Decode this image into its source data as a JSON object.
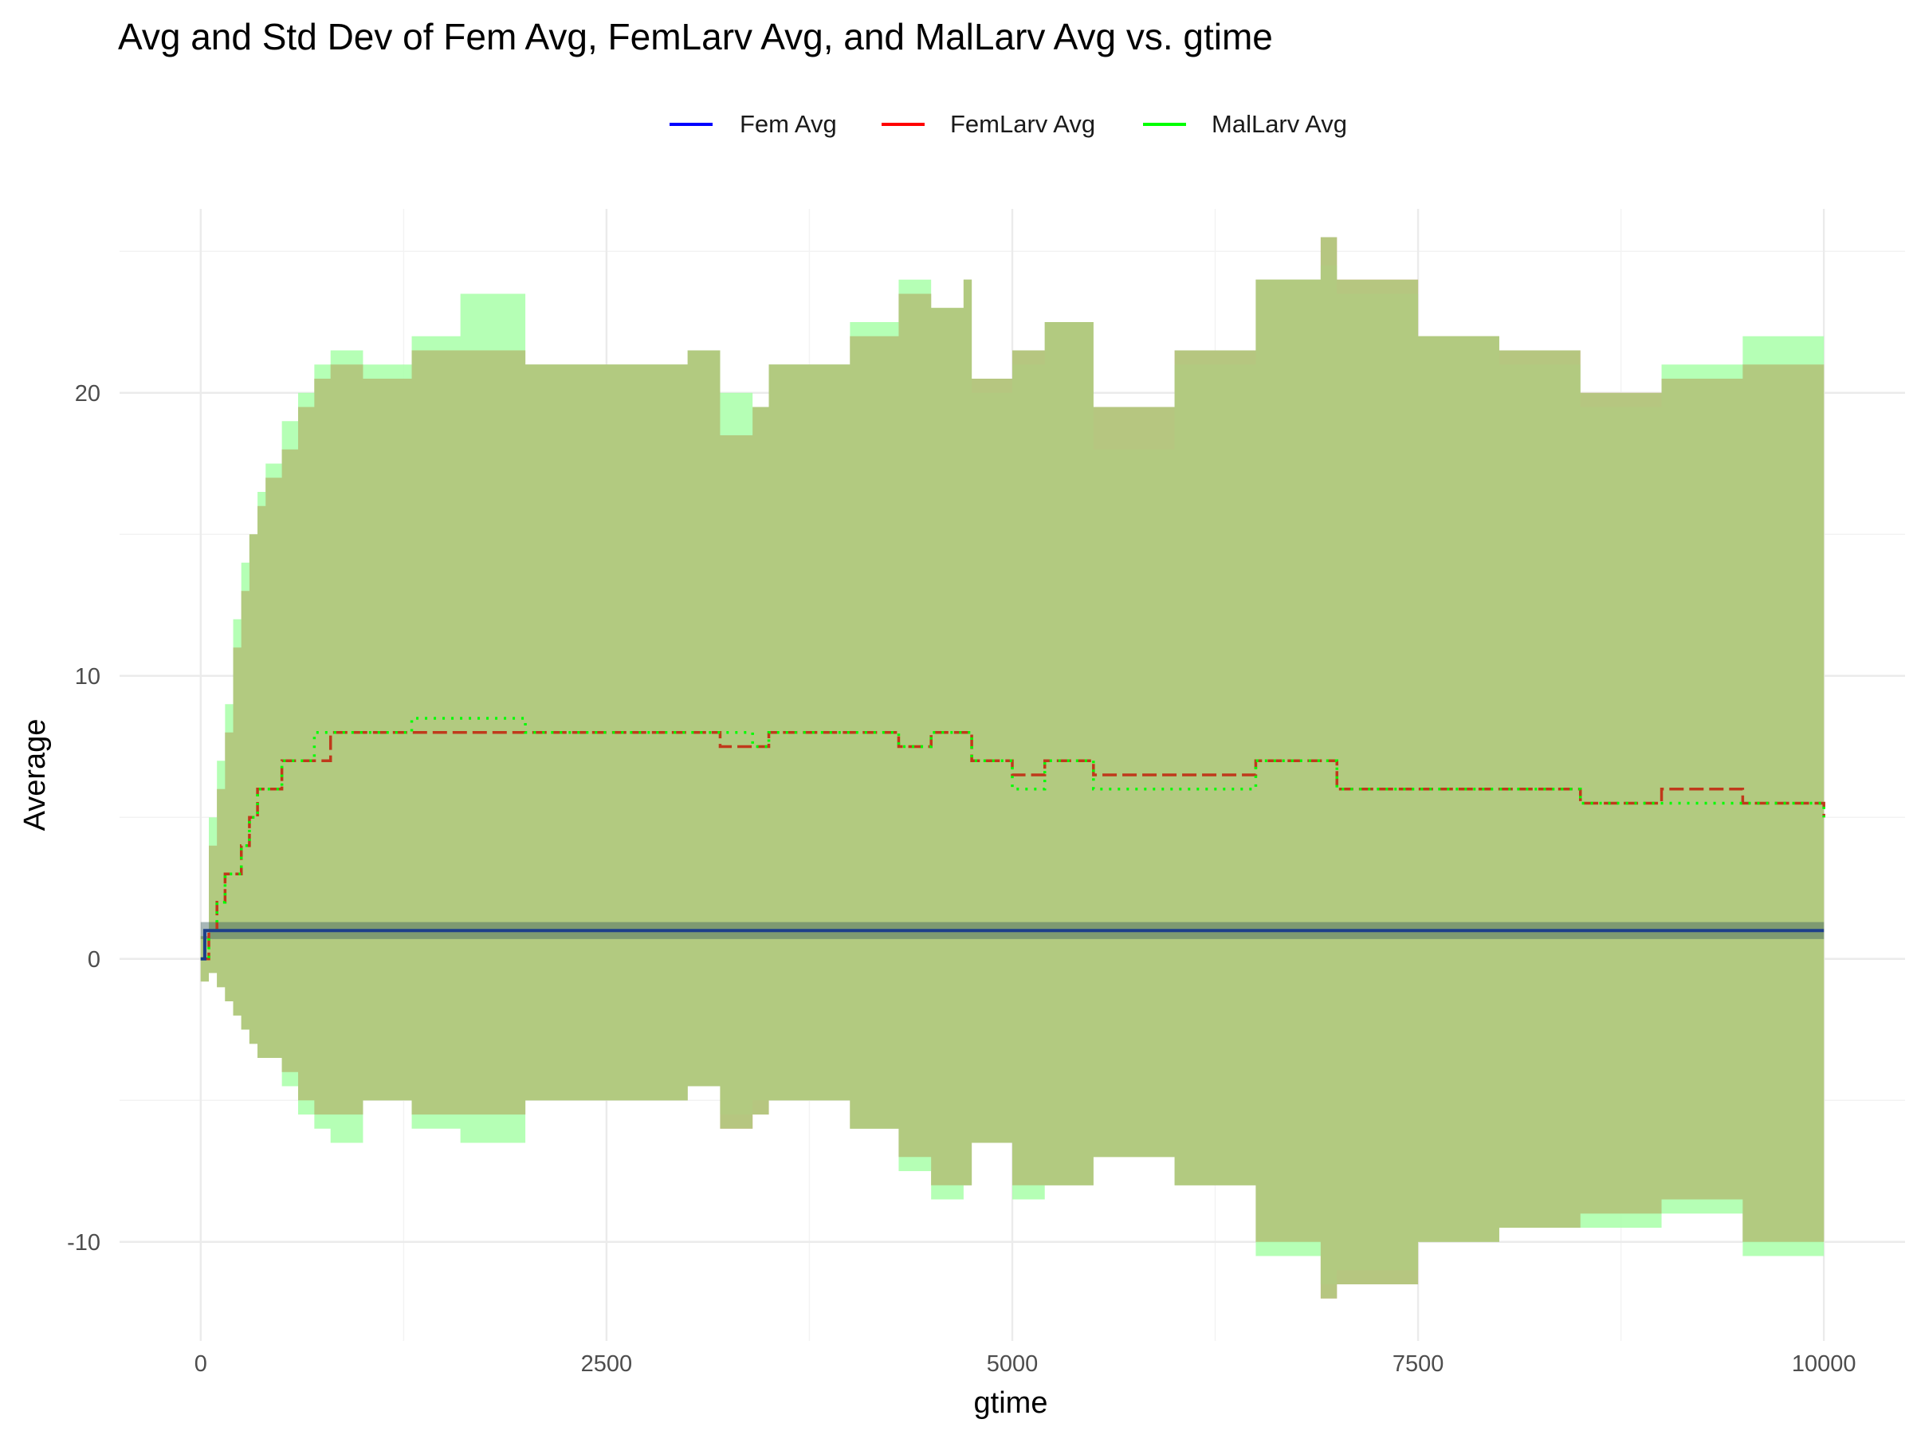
{
  "chart_data": {
    "type": "line",
    "title": "Avg and Std Dev of Fem Avg, FemLarv Avg, and MalLarv Avg vs. gtime",
    "xlabel": "gtime",
    "ylabel": "Average",
    "xlim": [
      -500,
      10500
    ],
    "ylim": [
      -13.5,
      26.5
    ],
    "x_ticks": [
      0,
      2500,
      5000,
      7500,
      10000
    ],
    "x_tick_labels": [
      "0",
      "2500",
      "5000",
      "7500",
      "10000"
    ],
    "y_ticks": [
      -10,
      0,
      10,
      20
    ],
    "y_tick_labels": [
      "-10",
      "0",
      "10",
      "20"
    ],
    "grid": true,
    "legend_position": "top",
    "legend": [
      "Fem Avg",
      "FemLarv Avg",
      "MalLarv Avg"
    ],
    "series": [
      {
        "name": "Fem Avg",
        "color": "#0000ff",
        "line_style": "solid",
        "x": [
          0,
          25,
          50,
          10000
        ],
        "values": [
          0,
          1,
          1,
          1
        ],
        "sd_upper": [
          1.3,
          1.3,
          1.3,
          1.3
        ],
        "sd_lower": [
          0.7,
          0.7,
          0.7,
          0.7
        ],
        "band_color": "#3d6060"
      },
      {
        "name": "FemLarv Avg",
        "color": "#ff0000",
        "line_style": "dashed",
        "x": [
          0,
          50,
          100,
          150,
          200,
          250,
          300,
          350,
          400,
          500,
          600,
          700,
          800,
          1000,
          1300,
          1600,
          2000,
          2500,
          3000,
          3200,
          3400,
          3500,
          4000,
          4300,
          4500,
          4700,
          4750,
          5000,
          5200,
          5500,
          6000,
          6500,
          6900,
          7000,
          7500,
          8000,
          8500,
          9000,
          9500,
          10000
        ],
        "values": [
          0,
          1,
          2,
          3,
          3,
          4,
          5,
          6,
          6,
          7,
          7,
          7,
          8,
          8,
          8,
          8,
          8,
          8,
          8,
          7.5,
          7.5,
          8,
          8,
          7.5,
          8,
          8,
          7,
          6.5,
          7,
          6.5,
          6.5,
          7,
          7,
          6,
          6,
          6,
          5.5,
          6,
          5.5,
          5
        ],
        "sd_upper": [
          0.8,
          4,
          6,
          8,
          11,
          13,
          15,
          16,
          17,
          18,
          19.5,
          20.5,
          21,
          20.5,
          21.5,
          21.5,
          21,
          21,
          21.5,
          18.5,
          19.5,
          21,
          22,
          23.5,
          23,
          24,
          20.5,
          21.5,
          22.5,
          19.5,
          21.5,
          24,
          25.5,
          24,
          22,
          21.5,
          20,
          20.5,
          21,
          20.5
        ],
        "sd_lower": [
          -0.8,
          -0.5,
          -1,
          -1.5,
          -2,
          -2.5,
          -3,
          -3.5,
          -3.5,
          -4,
          -5,
          -5.5,
          -5.5,
          -5,
          -5.5,
          -5.5,
          -5,
          -5,
          -4.5,
          -6,
          -5.5,
          -5,
          -6,
          -7,
          -8,
          -8,
          -6.5,
          -8,
          -8,
          -7,
          -8,
          -10,
          -12,
          -11.5,
          -10,
          -9.5,
          -9,
          -8.5,
          -10,
          -10.5
        ],
        "band_color": "#ff9999"
      },
      {
        "name": "MalLarv Avg",
        "color": "#00ff00",
        "line_style": "dotted",
        "x": [
          0,
          50,
          100,
          150,
          200,
          250,
          300,
          350,
          400,
          500,
          600,
          700,
          800,
          1000,
          1300,
          1600,
          2000,
          2500,
          3000,
          3200,
          3400,
          3500,
          4000,
          4300,
          4500,
          4700,
          4750,
          5000,
          5200,
          5500,
          6000,
          6500,
          6900,
          7000,
          7500,
          8000,
          8500,
          9000,
          9500,
          10000
        ],
        "values": [
          0,
          1,
          2,
          3,
          3,
          4,
          5,
          6,
          6,
          7,
          7,
          8,
          8,
          8,
          8.5,
          8.5,
          8,
          8,
          8,
          8,
          7.5,
          8,
          8,
          7.5,
          8,
          8,
          7,
          6,
          7,
          6,
          6,
          7,
          7,
          6,
          6,
          6,
          5.5,
          5.5,
          5.5,
          5
        ],
        "sd_upper": [
          0.8,
          5,
          7,
          9,
          12,
          14,
          15,
          16.5,
          17.5,
          19,
          20,
          21,
          21.5,
          21,
          22,
          23.5,
          21,
          21,
          21.5,
          20,
          19.5,
          21,
          22.5,
          24,
          23,
          24,
          20,
          21,
          22.5,
          18,
          21,
          24,
          24.5,
          23.5,
          22,
          21,
          19.5,
          21,
          22,
          20
        ],
        "sd_lower": [
          -0.8,
          -0.5,
          -1,
          -1.5,
          -2,
          -2.5,
          -3,
          -3.5,
          -3.5,
          -4.5,
          -5.5,
          -6,
          -6.5,
          -5,
          -6,
          -6.5,
          -5,
          -5,
          -4.5,
          -5.5,
          -5,
          -5,
          -6,
          -7.5,
          -8.5,
          -8,
          -6.5,
          -8.5,
          -8,
          -7,
          -8,
          -10.5,
          -11.5,
          -11,
          -10,
          -9.5,
          -9.5,
          -9,
          -10.5,
          -11
        ]
      }
    ]
  }
}
